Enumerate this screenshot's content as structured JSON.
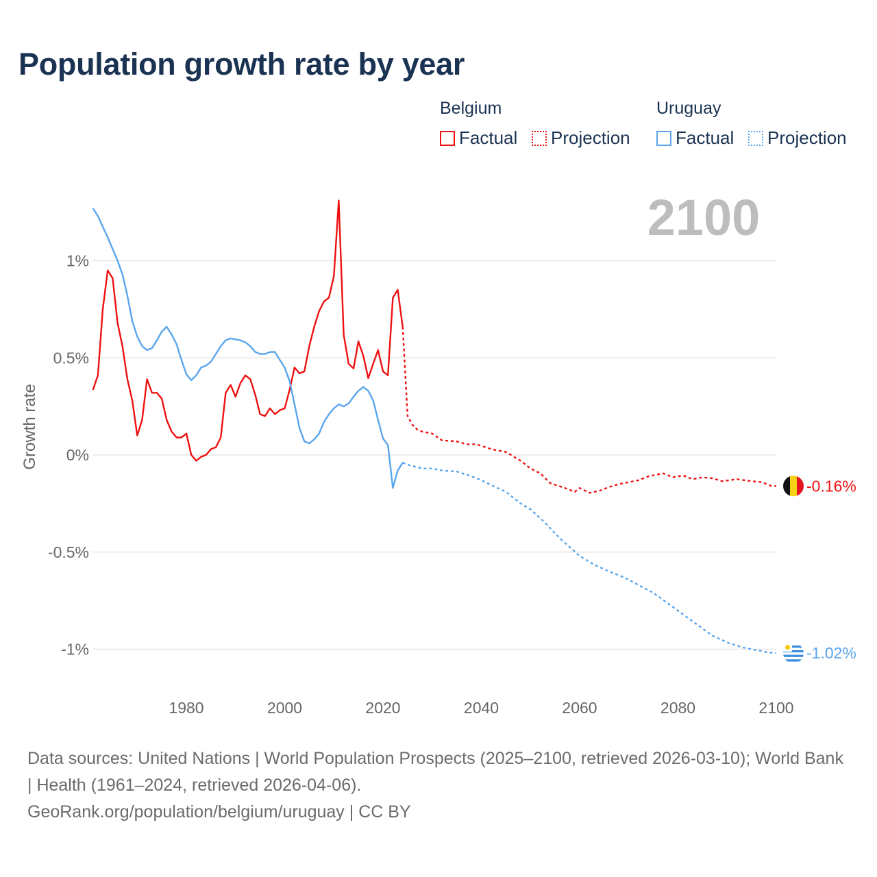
{
  "title": "Population growth rate by year",
  "legend": {
    "groups": [
      {
        "name": "Belgium",
        "color": "#ee1111",
        "items": [
          "Factual",
          "Projection"
        ]
      },
      {
        "name": "Uruguay",
        "color": "#5aa5ec",
        "items": [
          "Factual",
          "Projection"
        ]
      }
    ]
  },
  "footer": {
    "sources": "Data sources: United Nations | World Population Prospects (2025–2100, retrieved 2026-03-10); World Bank | Health (1961–2024, retrieved 2026-04-06).",
    "credit": "GeoRank.org/population/belgium/uruguay | CC BY"
  },
  "chart_data": {
    "type": "line",
    "title": "Population growth rate by year",
    "ylabel": "Growth rate",
    "xlabel": "",
    "current_year_label": "2100",
    "xlim": [
      1961,
      2100
    ],
    "ylim": [
      -1.2,
      1.35
    ],
    "x_ticks": [
      1980,
      2000,
      2020,
      2040,
      2060,
      2080,
      2100
    ],
    "y_ticks": [
      {
        "v": 1,
        "label": "1%"
      },
      {
        "v": 0.5,
        "label": "0.5%"
      },
      {
        "v": 0,
        "label": "0%"
      },
      {
        "v": -0.5,
        "label": "-0.5%"
      },
      {
        "v": -1,
        "label": "-1%"
      }
    ],
    "grid": true,
    "legend_position": "top-right",
    "series": [
      {
        "name": "Belgium",
        "kind": "Factual",
        "color": "#ee1111",
        "dashed": false,
        "x": [
          1961,
          1962,
          1963,
          1964,
          1965,
          1966,
          1967,
          1968,
          1969,
          1970,
          1971,
          1972,
          1973,
          1974,
          1975,
          1976,
          1977,
          1978,
          1979,
          1980,
          1981,
          1982,
          1983,
          1984,
          1985,
          1986,
          1987,
          1988,
          1989,
          1990,
          1991,
          1992,
          1993,
          1994,
          1995,
          1996,
          1997,
          1998,
          1999,
          2000,
          2001,
          2002,
          2003,
          2004,
          2005,
          2006,
          2007,
          2008,
          2009,
          2010,
          2011,
          2012,
          2013,
          2014,
          2015,
          2016,
          2017,
          2018,
          2019,
          2020,
          2021,
          2022,
          2023,
          2024
        ],
        "y": [
          0.335,
          0.41,
          0.75,
          0.95,
          0.91,
          0.68,
          0.56,
          0.39,
          0.28,
          0.1,
          0.18,
          0.39,
          0.32,
          0.32,
          0.29,
          0.18,
          0.12,
          0.09,
          0.09,
          0.11,
          0.0,
          -0.03,
          -0.01,
          0.0,
          0.03,
          0.04,
          0.09,
          0.32,
          0.36,
          0.3,
          0.37,
          0.41,
          0.39,
          0.31,
          0.21,
          0.2,
          0.24,
          0.21,
          0.23,
          0.24,
          0.335,
          0.45,
          0.42,
          0.43,
          0.56,
          0.66,
          0.74,
          0.79,
          0.81,
          0.92,
          1.31,
          0.62,
          0.47,
          0.445,
          0.585,
          0.51,
          0.395,
          0.47,
          0.54,
          0.43,
          0.41,
          0.81,
          0.85,
          0.66
        ]
      },
      {
        "name": "Belgium",
        "kind": "Projection",
        "color": "#ee1111",
        "dashed": true,
        "end_label": "-0.16%",
        "x": [
          2024,
          2025,
          2026,
          2027,
          2028,
          2030,
          2032,
          2035,
          2037,
          2039,
          2042,
          2045,
          2048,
          2050,
          2052,
          2054,
          2057,
          2059,
          2060,
          2062,
          2064,
          2066,
          2068,
          2072,
          2074,
          2077,
          2079,
          2081,
          2083,
          2085,
          2087,
          2089,
          2092,
          2095,
          2097,
          2099,
          2100
        ],
        "y": [
          0.66,
          0.2,
          0.155,
          0.13,
          0.12,
          0.11,
          0.075,
          0.07,
          0.055,
          0.055,
          0.03,
          0.015,
          -0.03,
          -0.07,
          -0.095,
          -0.145,
          -0.17,
          -0.19,
          -0.17,
          -0.195,
          -0.185,
          -0.165,
          -0.15,
          -0.13,
          -0.11,
          -0.095,
          -0.115,
          -0.105,
          -0.125,
          -0.115,
          -0.12,
          -0.135,
          -0.125,
          -0.135,
          -0.14,
          -0.16,
          -0.16
        ]
      },
      {
        "name": "Uruguay",
        "kind": "Factual",
        "color": "#5aa5ec",
        "dashed": false,
        "x": [
          1961,
          1962,
          1963,
          1964,
          1965,
          1966,
          1967,
          1968,
          1969,
          1970,
          1971,
          1972,
          1973,
          1974,
          1975,
          1976,
          1977,
          1978,
          1979,
          1980,
          1981,
          1982,
          1983,
          1984,
          1985,
          1986,
          1987,
          1988,
          1989,
          1990,
          1991,
          1992,
          1993,
          1994,
          1995,
          1996,
          1997,
          1998,
          1999,
          2000,
          2001,
          2002,
          2003,
          2004,
          2005,
          2006,
          2007,
          2008,
          2009,
          2010,
          2011,
          2012,
          2013,
          2014,
          2015,
          2016,
          2017,
          2018,
          2019,
          2020,
          2021,
          2022,
          2023,
          2024
        ],
        "y": [
          1.27,
          1.23,
          1.175,
          1.12,
          1.06,
          1.0,
          0.93,
          0.82,
          0.69,
          0.61,
          0.56,
          0.54,
          0.55,
          0.59,
          0.635,
          0.66,
          0.62,
          0.57,
          0.49,
          0.415,
          0.385,
          0.41,
          0.45,
          0.46,
          0.48,
          0.52,
          0.56,
          0.59,
          0.6,
          0.595,
          0.59,
          0.58,
          0.56,
          0.53,
          0.52,
          0.52,
          0.53,
          0.53,
          0.49,
          0.45,
          0.38,
          0.26,
          0.14,
          0.07,
          0.06,
          0.08,
          0.11,
          0.17,
          0.21,
          0.24,
          0.26,
          0.25,
          0.265,
          0.3,
          0.33,
          0.35,
          0.33,
          0.28,
          0.18,
          0.085,
          0.05,
          -0.17,
          -0.08,
          -0.04
        ]
      },
      {
        "name": "Uruguay",
        "kind": "Projection",
        "color": "#5aa5ec",
        "dashed": true,
        "end_label": "-1.02%",
        "x": [
          2024,
          2025,
          2028,
          2030,
          2032,
          2035,
          2038,
          2040,
          2042,
          2045,
          2048,
          2050,
          2053,
          2056,
          2060,
          2063,
          2066,
          2069,
          2072,
          2075,
          2078,
          2081,
          2084,
          2087,
          2090,
          2093,
          2096,
          2098,
          2100
        ],
        "y": [
          -0.04,
          -0.05,
          -0.07,
          -0.07,
          -0.08,
          -0.085,
          -0.11,
          -0.13,
          -0.155,
          -0.19,
          -0.25,
          -0.28,
          -0.35,
          -0.43,
          -0.52,
          -0.565,
          -0.6,
          -0.63,
          -0.67,
          -0.71,
          -0.765,
          -0.82,
          -0.875,
          -0.93,
          -0.965,
          -0.99,
          -1.005,
          -1.015,
          -1.02
        ]
      }
    ]
  }
}
